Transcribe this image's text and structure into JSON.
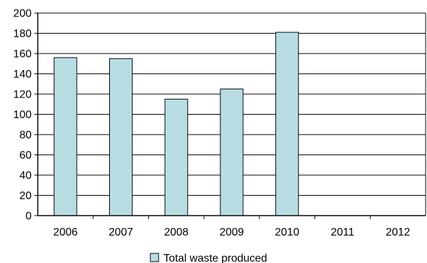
{
  "chart_data": {
    "type": "bar",
    "categories": [
      "2006",
      "2007",
      "2008",
      "2009",
      "2010",
      "2011",
      "2012"
    ],
    "series": [
      {
        "name": "Total waste produced",
        "values": [
          156,
          155,
          115,
          125,
          181,
          null,
          null
        ],
        "color": "#b7dde3"
      }
    ],
    "title": "",
    "xlabel": "",
    "ylabel": "",
    "ylim": [
      0,
      200
    ],
    "yticks": [
      0,
      20,
      40,
      60,
      80,
      100,
      120,
      140,
      160,
      180,
      200
    ],
    "grid": true,
    "legend": "bottom-center"
  },
  "colors": {
    "bar_fill": "#b7dde3",
    "bar_stroke": "#000000",
    "grid": "#000000",
    "axis": "#000000"
  }
}
